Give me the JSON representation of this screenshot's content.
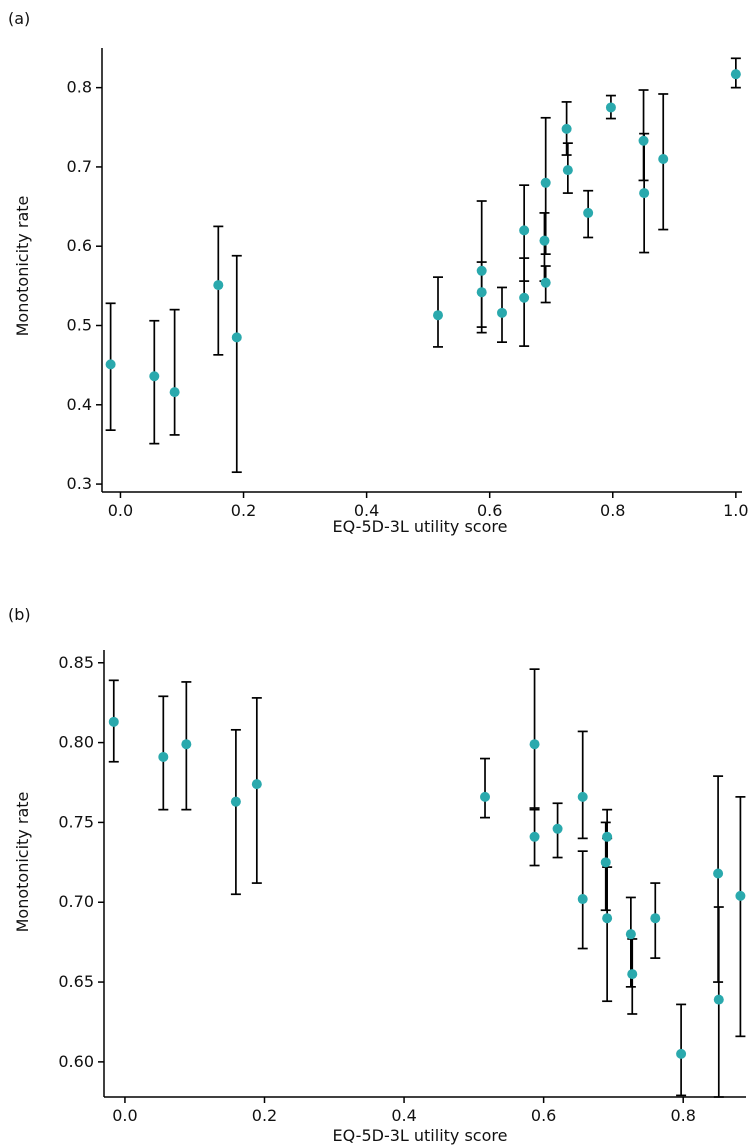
{
  "colors": {
    "point": "#2aa9ad",
    "error_bar": "#000000"
  },
  "chart_data": [
    {
      "type": "scatter",
      "panel_label": "(a)",
      "xlabel": "EQ-5D-3L utility score",
      "ylabel": "Monotonicity rate",
      "xlim": [
        -0.03,
        1.01
      ],
      "ylim": [
        0.29,
        0.85
      ],
      "xticks": [
        "0.0",
        "0.2",
        "0.4",
        "0.6",
        "0.8",
        "1.0"
      ],
      "yticks": [
        "0.3",
        "0.4",
        "0.5",
        "0.6",
        "0.7",
        "0.8"
      ],
      "grid": false,
      "error_bars": true,
      "points": [
        {
          "x": -0.016,
          "y": 0.451,
          "lo": 0.368,
          "hi": 0.528
        },
        {
          "x": 0.055,
          "y": 0.436,
          "lo": 0.351,
          "hi": 0.506
        },
        {
          "x": 0.088,
          "y": 0.416,
          "lo": 0.362,
          "hi": 0.52
        },
        {
          "x": 0.159,
          "y": 0.551,
          "lo": 0.463,
          "hi": 0.625
        },
        {
          "x": 0.189,
          "y": 0.485,
          "lo": 0.315,
          "hi": 0.588
        },
        {
          "x": 0.516,
          "y": 0.513,
          "lo": 0.473,
          "hi": 0.561
        },
        {
          "x": 0.587,
          "y": 0.569,
          "lo": 0.498,
          "hi": 0.657
        },
        {
          "x": 0.587,
          "y": 0.542,
          "lo": 0.491,
          "hi": 0.58
        },
        {
          "x": 0.62,
          "y": 0.516,
          "lo": 0.479,
          "hi": 0.548
        },
        {
          "x": 0.656,
          "y": 0.62,
          "lo": 0.556,
          "hi": 0.677
        },
        {
          "x": 0.656,
          "y": 0.535,
          "lo": 0.474,
          "hi": 0.585
        },
        {
          "x": 0.691,
          "y": 0.68,
          "lo": 0.59,
          "hi": 0.762
        },
        {
          "x": 0.689,
          "y": 0.607,
          "lo": 0.556,
          "hi": 0.642
        },
        {
          "x": 0.691,
          "y": 0.554,
          "lo": 0.529,
          "hi": 0.575
        },
        {
          "x": 0.725,
          "y": 0.748,
          "lo": 0.715,
          "hi": 0.782
        },
        {
          "x": 0.727,
          "y": 0.696,
          "lo": 0.667,
          "hi": 0.73
        },
        {
          "x": 0.76,
          "y": 0.642,
          "lo": 0.611,
          "hi": 0.67
        },
        {
          "x": 0.797,
          "y": 0.775,
          "lo": 0.761,
          "hi": 0.79
        },
        {
          "x": 0.85,
          "y": 0.733,
          "lo": 0.683,
          "hi": 0.797
        },
        {
          "x": 0.851,
          "y": 0.667,
          "lo": 0.592,
          "hi": 0.742
        },
        {
          "x": 0.882,
          "y": 0.71,
          "lo": 0.621,
          "hi": 0.792
        },
        {
          "x": 1.0,
          "y": 0.817,
          "lo": 0.8,
          "hi": 0.837
        }
      ]
    },
    {
      "type": "scatter",
      "panel_label": "(b)",
      "xlabel": "EQ-5D-3L utility score",
      "ylabel": "Monotonicity rate",
      "xlim": [
        -0.03,
        0.89
      ],
      "ylim": [
        0.578,
        0.858
      ],
      "xticks": [
        "0.0",
        "0.2",
        "0.4",
        "0.6",
        "0.8"
      ],
      "yticks": [
        "0.60",
        "0.65",
        "0.70",
        "0.75",
        "0.80",
        "0.85"
      ],
      "grid": false,
      "error_bars": true,
      "points": [
        {
          "x": -0.016,
          "y": 0.813,
          "lo": 0.788,
          "hi": 0.839
        },
        {
          "x": 0.055,
          "y": 0.791,
          "lo": 0.758,
          "hi": 0.829
        },
        {
          "x": 0.088,
          "y": 0.799,
          "lo": 0.758,
          "hi": 0.838
        },
        {
          "x": 0.159,
          "y": 0.763,
          "lo": 0.705,
          "hi": 0.808
        },
        {
          "x": 0.189,
          "y": 0.774,
          "lo": 0.712,
          "hi": 0.828
        },
        {
          "x": 0.516,
          "y": 0.766,
          "lo": 0.753,
          "hi": 0.79
        },
        {
          "x": 0.587,
          "y": 0.799,
          "lo": 0.758,
          "hi": 0.846
        },
        {
          "x": 0.587,
          "y": 0.741,
          "lo": 0.723,
          "hi": 0.759
        },
        {
          "x": 0.62,
          "y": 0.746,
          "lo": 0.728,
          "hi": 0.762
        },
        {
          "x": 0.656,
          "y": 0.766,
          "lo": 0.74,
          "hi": 0.807
        },
        {
          "x": 0.656,
          "y": 0.702,
          "lo": 0.671,
          "hi": 0.732
        },
        {
          "x": 0.691,
          "y": 0.741,
          "lo": 0.722,
          "hi": 0.758
        },
        {
          "x": 0.689,
          "y": 0.725,
          "lo": 0.695,
          "hi": 0.75
        },
        {
          "x": 0.691,
          "y": 0.69,
          "lo": 0.638,
          "hi": 0.74
        },
        {
          "x": 0.725,
          "y": 0.68,
          "lo": 0.647,
          "hi": 0.703
        },
        {
          "x": 0.727,
          "y": 0.655,
          "lo": 0.63,
          "hi": 0.677
        },
        {
          "x": 0.76,
          "y": 0.69,
          "lo": 0.665,
          "hi": 0.712
        },
        {
          "x": 0.797,
          "y": 0.605,
          "lo": 0.579,
          "hi": 0.636
        },
        {
          "x": 0.85,
          "y": 0.718,
          "lo": 0.65,
          "hi": 0.779
        },
        {
          "x": 0.851,
          "y": 0.639,
          "lo": 0.578,
          "hi": 0.697
        },
        {
          "x": 0.882,
          "y": 0.704,
          "lo": 0.616,
          "hi": 0.766
        }
      ]
    }
  ]
}
